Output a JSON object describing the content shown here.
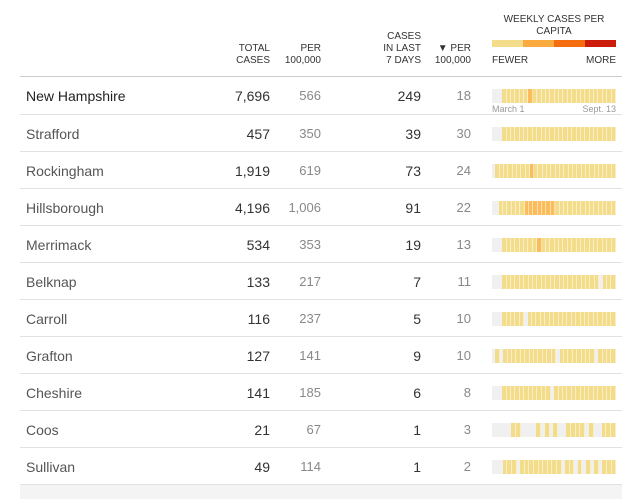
{
  "headers": {
    "total": [
      "TOTAL",
      "CASES"
    ],
    "per1": [
      "PER",
      "100,000"
    ],
    "last7": [
      "CASES",
      "IN LAST",
      "7 DAYS"
    ],
    "per2": [
      "▼ PER",
      "100,000"
    ]
  },
  "legend": {
    "title": "WEEKLY CASES PER CAPITA",
    "fewer": "FEWER",
    "more": "MORE",
    "colors": [
      "#f3dc8a",
      "#fbaa3f",
      "#f46d0f",
      "#cc1c0c"
    ]
  },
  "levelColors": [
    "#f0f0f0",
    "#f3dc8a",
    "#fbbd5c"
  ],
  "dates": {
    "start": "March 1",
    "end": "Sept. 13"
  },
  "rows": [
    {
      "name": "New Hampshire",
      "total": "7,696",
      "per": "566",
      "last7": "249",
      "per7": "18",
      "weeks": "00011111121111111111111111111"
    },
    {
      "name": "Strafford",
      "total": "457",
      "per": "350",
      "last7": "39",
      "per7": "30",
      "weeks": "00011111111111111111111111111"
    },
    {
      "name": "Rockingham",
      "total": "1,919",
      "per": "619",
      "last7": "73",
      "per7": "24",
      "weeks": "01111111121111111111111111111"
    },
    {
      "name": "Hillsborough",
      "total": "4,196",
      "per": "1,006",
      "last7": "91",
      "per7": "22",
      "weeks": "00111111222222211111111111111"
    },
    {
      "name": "Merrimack",
      "total": "534",
      "per": "353",
      "last7": "19",
      "per7": "13",
      "weeks": "00011111111211111111111111111"
    },
    {
      "name": "Belknap",
      "total": "133",
      "per": "217",
      "last7": "7",
      "per7": "11",
      "weeks": "00011111111111111111111110111"
    },
    {
      "name": "Carroll",
      "total": "116",
      "per": "237",
      "last7": "5",
      "per7": "10",
      "weeks": "00011111011111111111111111111"
    },
    {
      "name": "Grafton",
      "total": "127",
      "per": "141",
      "last7": "9",
      "per7": "10",
      "weeks": "01011111111111101111111101111"
    },
    {
      "name": "Cheshire",
      "total": "141",
      "per": "185",
      "last7": "6",
      "per7": "8",
      "weeks": "00011111111111011111111111111"
    },
    {
      "name": "Coos",
      "total": "21",
      "per": "67",
      "last7": "1",
      "per7": "3",
      "weeks": "00000110000101010011110100111"
    },
    {
      "name": "Sullivan",
      "total": "49",
      "per": "114",
      "last7": "1",
      "per7": "2",
      "weeks": "00011101111111110110101010111"
    }
  ]
}
